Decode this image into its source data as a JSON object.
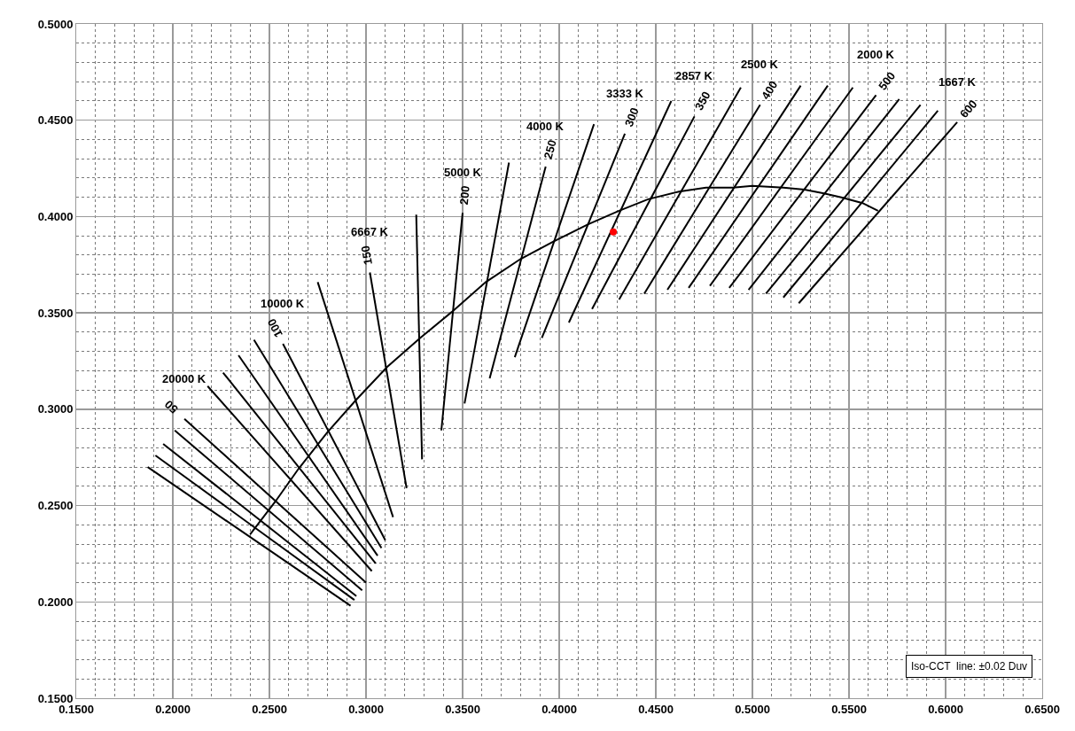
{
  "chart_data": {
    "type": "line",
    "xlim": [
      0.15,
      0.65
    ],
    "ylim": [
      0.15,
      0.5
    ],
    "xticks": [
      {
        "value": 0.15,
        "label": "0.1500"
      },
      {
        "value": 0.2,
        "label": "0.2000"
      },
      {
        "value": 0.25,
        "label": "0.2500"
      },
      {
        "value": 0.3,
        "label": "0.3000"
      },
      {
        "value": 0.35,
        "label": "0.3500"
      },
      {
        "value": 0.4,
        "label": "0.4000"
      },
      {
        "value": 0.45,
        "label": "0.4500"
      },
      {
        "value": 0.5,
        "label": "0.5000"
      },
      {
        "value": 0.55,
        "label": "0.5500"
      },
      {
        "value": 0.6,
        "label": "0.6000"
      },
      {
        "value": 0.65,
        "label": "0.6500"
      }
    ],
    "yticks": [
      {
        "value": 0.15,
        "label": "0.1500"
      },
      {
        "value": 0.2,
        "label": "0.2000"
      },
      {
        "value": 0.25,
        "label": "0.2500"
      },
      {
        "value": 0.3,
        "label": "0.3000"
      },
      {
        "value": 0.35,
        "label": "0.3500"
      },
      {
        "value": 0.4,
        "label": "0.4000"
      },
      {
        "value": 0.45,
        "label": "0.4500"
      },
      {
        "value": 0.5,
        "label": "0.5000"
      }
    ],
    "grid": true,
    "marker": "none",
    "line_style": "solid",
    "series": [
      {
        "color": "#000000",
        "x": [
          0.24,
          0.253,
          0.265,
          0.28,
          0.295,
          0.311,
          0.328,
          0.345,
          0.362,
          0.38,
          0.397,
          0.415,
          0.431,
          0.446,
          0.462,
          0.476,
          0.49,
          0.5,
          0.516,
          0.527,
          0.537,
          0.546,
          0.557,
          0.565
        ],
        "values": [
          0.235,
          0.252,
          0.269,
          0.288,
          0.305,
          0.322,
          0.337,
          0.351,
          0.366,
          0.378,
          0.387,
          0.396,
          0.403,
          0.409,
          0.413,
          0.415,
          0.415,
          0.416,
          0.415,
          0.414,
          0.412,
          0.41,
          0.407,
          0.403
        ]
      },
      {
        "color": "#000000",
        "x": [
          0.187,
          0.292
        ],
        "values": [
          0.27,
          0.198
        ]
      },
      {
        "color": "#000000",
        "x": [
          0.191,
          0.294
        ],
        "values": [
          0.276,
          0.201
        ]
      },
      {
        "color": "#000000",
        "x": [
          0.195,
          0.295
        ],
        "values": [
          0.282,
          0.203
        ]
      },
      {
        "color": "#000000",
        "x": [
          0.201,
          0.298
        ],
        "values": [
          0.289,
          0.206
        ]
      },
      {
        "name": "50",
        "color": "#000000",
        "x": [
          0.206,
          0.3
        ],
        "values": [
          0.295,
          0.21
        ]
      },
      {
        "color": "#000000",
        "x": [
          0.218,
          0.303
        ],
        "values": [
          0.312,
          0.216
        ]
      },
      {
        "color": "#000000",
        "x": [
          0.226,
          0.305
        ],
        "values": [
          0.319,
          0.22
        ]
      },
      {
        "color": "#000000",
        "x": [
          0.234,
          0.306
        ],
        "values": [
          0.328,
          0.224
        ]
      },
      {
        "color": "#000000",
        "x": [
          0.242,
          0.308
        ],
        "values": [
          0.336,
          0.228
        ]
      },
      {
        "name": "100",
        "color": "#000000",
        "x": [
          0.257,
          0.31
        ],
        "values": [
          0.334,
          0.232
        ]
      },
      {
        "color": "#000000",
        "x": [
          0.275,
          0.314
        ],
        "values": [
          0.366,
          0.244
        ]
      },
      {
        "name": "150",
        "color": "#000000",
        "x": [
          0.302,
          0.321
        ],
        "values": [
          0.371,
          0.259
        ]
      },
      {
        "color": "#000000",
        "x": [
          0.326,
          0.329
        ],
        "values": [
          0.401,
          0.274
        ]
      },
      {
        "name": "200",
        "color": "#000000",
        "x": [
          0.35,
          0.339
        ],
        "values": [
          0.402,
          0.289
        ]
      },
      {
        "color": "#000000",
        "x": [
          0.374,
          0.351
        ],
        "values": [
          0.428,
          0.303
        ]
      },
      {
        "name": "250",
        "color": "#000000",
        "x": [
          0.393,
          0.364
        ],
        "values": [
          0.426,
          0.316
        ]
      },
      {
        "color": "#000000",
        "x": [
          0.418,
          0.377
        ],
        "values": [
          0.448,
          0.327
        ]
      },
      {
        "name": "300",
        "color": "#000000",
        "x": [
          0.434,
          0.391
        ],
        "values": [
          0.443,
          0.337
        ]
      },
      {
        "color": "#000000",
        "x": [
          0.458,
          0.405
        ],
        "values": [
          0.46,
          0.345
        ]
      },
      {
        "name": "350",
        "color": "#000000",
        "x": [
          0.47,
          0.417
        ],
        "values": [
          0.452,
          0.352
        ]
      },
      {
        "color": "#000000",
        "x": [
          0.494,
          0.431
        ],
        "values": [
          0.467,
          0.357
        ]
      },
      {
        "name": "400",
        "color": "#000000",
        "x": [
          0.504,
          0.444
        ],
        "values": [
          0.458,
          0.36
        ]
      },
      {
        "color": "#000000",
        "x": [
          0.525,
          0.456
        ],
        "values": [
          0.468,
          0.362
        ]
      },
      {
        "color": "#000000",
        "x": [
          0.539,
          0.467
        ],
        "values": [
          0.468,
          0.363
        ]
      },
      {
        "color": "#000000",
        "x": [
          0.552,
          0.478
        ],
        "values": [
          0.467,
          0.364
        ]
      },
      {
        "name": "500",
        "color": "#000000",
        "x": [
          0.564,
          0.488
        ],
        "values": [
          0.463,
          0.363
        ]
      },
      {
        "color": "#000000",
        "x": [
          0.576,
          0.498
        ],
        "values": [
          0.461,
          0.362
        ]
      },
      {
        "color": "#000000",
        "x": [
          0.587,
          0.507
        ],
        "values": [
          0.458,
          0.36
        ]
      },
      {
        "color": "#000000",
        "x": [
          0.596,
          0.516
        ],
        "values": [
          0.455,
          0.358
        ]
      },
      {
        "name": "600",
        "color": "#000000",
        "x": [
          0.606,
          0.524
        ],
        "values": [
          0.449,
          0.355
        ]
      },
      {
        "type": "scatter",
        "marker": "circle",
        "color": "#ff0000",
        "x": [
          0.428
        ],
        "values": [
          0.392
        ]
      }
    ],
    "annotations": [
      {
        "text": "20000 K",
        "x": 0.206,
        "y": 0.295
      },
      {
        "text": "10000 K",
        "x": 0.257,
        "y": 0.334
      },
      {
        "text": "6667 K",
        "x": 0.302,
        "y": 0.371
      },
      {
        "text": "5000 K",
        "x": 0.35,
        "y": 0.402
      },
      {
        "text": "4000 K",
        "x": 0.393,
        "y": 0.426
      },
      {
        "text": "3333 K",
        "x": 0.434,
        "y": 0.443
      },
      {
        "text": "2857 K",
        "x": 0.47,
        "y": 0.452
      },
      {
        "text": "2500 K",
        "x": 0.504,
        "y": 0.458
      },
      {
        "text": "2000 K",
        "x": 0.564,
        "y": 0.463
      },
      {
        "text": "1667 K",
        "x": 0.606,
        "y": 0.449
      },
      "Iso-CCT  line: ±0.02 Duv"
    ]
  }
}
